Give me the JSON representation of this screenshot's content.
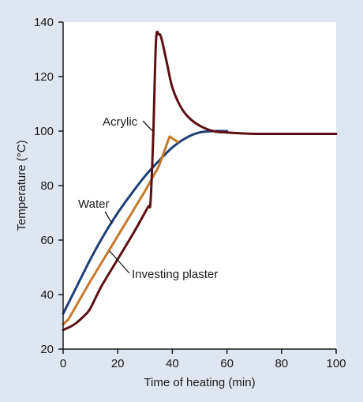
{
  "colors": {
    "background": "#dde6f1",
    "plot_area": "#ffffff",
    "axis": "#1a1a1a"
  },
  "chart_data": {
    "type": "line",
    "title": "",
    "xlabel": "Time of heating (min)",
    "ylabel": "Temperature (°C)",
    "xlim": [
      0,
      100
    ],
    "ylim": [
      20,
      140
    ],
    "xticks": [
      0,
      20,
      40,
      60,
      80,
      100
    ],
    "yticks": [
      20,
      40,
      60,
      80,
      100,
      120,
      140
    ],
    "grid": false,
    "legend": "none",
    "series": [
      {
        "name": "Water",
        "color": "#1f3f75",
        "x": [
          0,
          5,
          10,
          15,
          20,
          25,
          30,
          35,
          40,
          45,
          50,
          55,
          60
        ],
        "y": [
          33,
          43,
          53,
          62,
          70,
          77,
          83.5,
          89,
          94,
          97.5,
          99.5,
          100,
          100
        ]
      },
      {
        "name": "Investing plaster",
        "color": "#c47a2c",
        "x": [
          0,
          2,
          10,
          20,
          30,
          35,
          39,
          42
        ],
        "y": [
          29,
          31,
          45,
          61.5,
          78,
          87,
          98,
          96
        ]
      },
      {
        "name": "Acrylic",
        "color": "#5c0f14",
        "x": [
          0,
          4,
          8,
          10,
          14,
          20,
          26,
          31,
          32,
          33,
          34,
          35,
          36,
          38,
          40,
          43,
          46,
          50,
          55,
          60,
          70,
          80,
          90,
          100
        ],
        "y": [
          27,
          29,
          32.5,
          35,
          43,
          53,
          63,
          72,
          74,
          98,
          133,
          135.5,
          134,
          125,
          116,
          109,
          105,
          102,
          100,
          99.5,
          99,
          99,
          99,
          99
        ]
      }
    ],
    "annotations": [
      {
        "text": "Acrylic",
        "points_to": "Acrylic",
        "target": [
          32.8,
          100
        ]
      },
      {
        "text": "Water",
        "points_to": "Water",
        "target": [
          18,
          66
        ]
      },
      {
        "text": "Investing plaster",
        "points_to": "Investing plaster",
        "target": [
          17,
          56
        ]
      }
    ]
  }
}
